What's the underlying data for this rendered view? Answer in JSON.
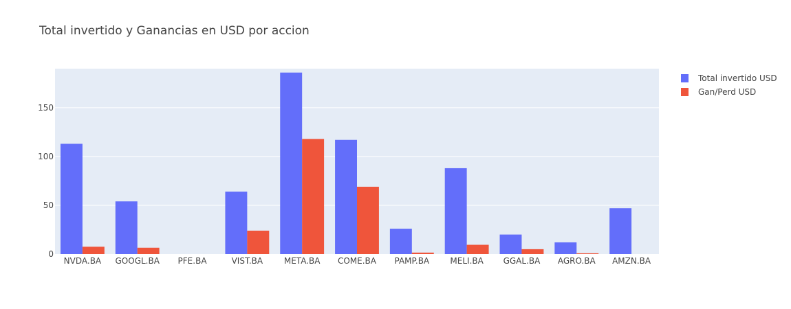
{
  "chart_data": {
    "type": "bar",
    "title": "Total invertido y Ganancias en USD por accion",
    "xlabel": "",
    "ylabel": "",
    "categories": [
      "NVDA.BA",
      "GOOGL.BA",
      "PFE.BA",
      "VIST.BA",
      "META.BA",
      "COME.BA",
      "PAMP.BA",
      "MELI.BA",
      "GGAL.BA",
      "AGRO.BA",
      "AMZN.BA"
    ],
    "series": [
      {
        "name": "Total invertido USD",
        "color": "#636efa",
        "values": [
          113,
          54,
          0,
          64,
          186,
          117,
          26,
          88,
          20,
          12,
          47
        ]
      },
      {
        "name": "Gan/Perd USD",
        "color": "#ef553b",
        "values": [
          7.5,
          6.5,
          0,
          24,
          118,
          69,
          1.5,
          9.5,
          5,
          0.8,
          0
        ]
      }
    ],
    "ylim": [
      0,
      190
    ],
    "yticks": [
      0,
      50,
      100,
      150
    ],
    "grid": true,
    "legend_position": "top-right",
    "plot_background": "#e5ecf6"
  }
}
